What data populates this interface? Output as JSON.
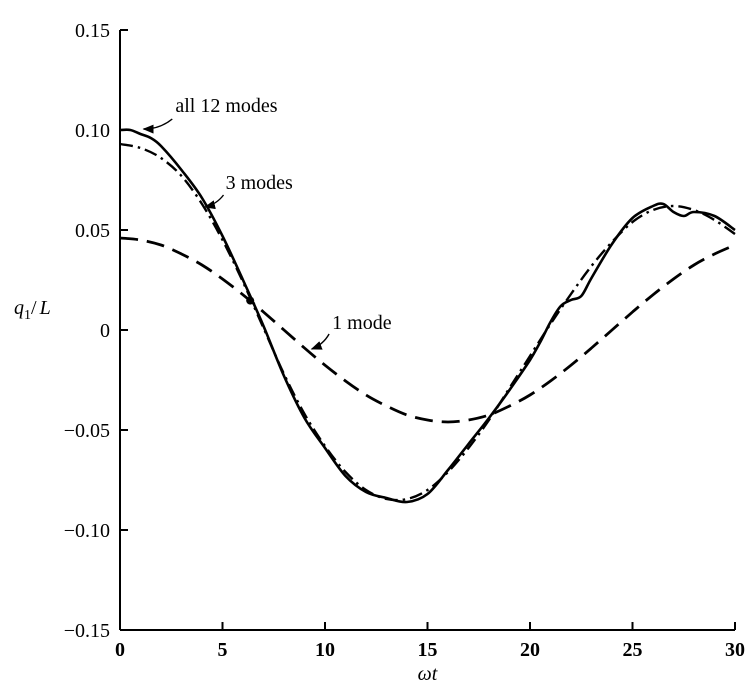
{
  "figure": {
    "background": "#ffffff",
    "ink": "#000000"
  },
  "chart_data": {
    "type": "line",
    "title": "",
    "xlabel": "ωt",
    "ylabel": "q1/L",
    "ylabel_display": {
      "var": "q",
      "sub": "1",
      "divider": "/",
      "denom": "L"
    },
    "xlim": [
      0,
      30
    ],
    "ylim": [
      -0.15,
      0.15
    ],
    "xticks": [
      0,
      5,
      10,
      15,
      20,
      25,
      30
    ],
    "xtick_labels": [
      "0",
      "5",
      "10",
      "15",
      "20",
      "25",
      "30"
    ],
    "yticks": [
      0.15,
      0.1,
      0.05,
      0,
      -0.05,
      -0.1,
      -0.15
    ],
    "ytick_labels": [
      "0.15",
      "0.10",
      "0.05",
      "0",
      "−0.05",
      "−0.10",
      "−0.15"
    ],
    "grid": false,
    "legend_position": "inline-annotations",
    "series": [
      {
        "name": "all 12 modes",
        "style": "solid",
        "stroke_width": 2.6,
        "x": [
          0,
          0.5,
          1,
          1.5,
          2,
          3,
          4,
          5,
          6,
          7,
          8,
          9,
          10,
          11,
          12,
          13,
          14,
          15,
          16,
          17,
          18,
          19,
          20,
          20.5,
          21,
          21.5,
          22,
          22.5,
          23,
          24,
          25,
          26,
          26.5,
          27,
          27.5,
          28,
          29,
          30
        ],
        "y": [
          0.1,
          0.1,
          0.098,
          0.096,
          0.092,
          0.08,
          0.066,
          0.047,
          0.025,
          0.002,
          -0.023,
          -0.044,
          -0.059,
          -0.073,
          -0.081,
          -0.084,
          -0.086,
          -0.082,
          -0.07,
          -0.057,
          -0.044,
          -0.03,
          -0.015,
          -0.006,
          0.004,
          0.012,
          0.015,
          0.017,
          0.026,
          0.043,
          0.056,
          0.062,
          0.063,
          0.059,
          0.057,
          0.059,
          0.057,
          0.05
        ]
      },
      {
        "name": "3 modes",
        "style": "dash-dot",
        "stroke_width": 2.4,
        "x": [
          0,
          1,
          2,
          3,
          4,
          5,
          6,
          7,
          8,
          9,
          10,
          11,
          12,
          13,
          14,
          15,
          16,
          17,
          18,
          19,
          20,
          21,
          22,
          23,
          24,
          25,
          26,
          27,
          28,
          29,
          30
        ],
        "y": [
          0.093,
          0.091,
          0.086,
          0.077,
          0.063,
          0.045,
          0.024,
          0.001,
          -0.022,
          -0.042,
          -0.058,
          -0.071,
          -0.08,
          -0.0845,
          -0.0845,
          -0.08,
          -0.071,
          -0.059,
          -0.045,
          -0.029,
          -0.013,
          0.003,
          0.018,
          0.032,
          0.044,
          0.054,
          0.06,
          0.062,
          0.06,
          0.055,
          0.048
        ]
      },
      {
        "name": "1 mode",
        "style": "long-dash",
        "stroke_width": 2.8,
        "x": [
          0,
          1,
          2,
          3,
          4,
          5,
          6,
          7,
          8,
          9,
          10,
          11,
          12,
          13,
          14,
          15,
          16,
          17,
          18,
          19,
          20,
          21,
          22,
          23,
          24,
          25,
          26,
          27,
          28,
          29,
          30
        ],
        "y": [
          0.046,
          0.045,
          0.0425,
          0.038,
          0.0325,
          0.0255,
          0.0176,
          0.009,
          0,
          -0.009,
          -0.0176,
          -0.0255,
          -0.0325,
          -0.038,
          -0.0425,
          -0.045,
          -0.046,
          -0.045,
          -0.0425,
          -0.038,
          -0.0325,
          -0.0255,
          -0.0176,
          -0.009,
          0,
          0.009,
          0.0176,
          0.0255,
          0.0325,
          0.038,
          0.0425
        ]
      }
    ],
    "annotations": [
      {
        "label": "all 12 modes",
        "text_xy": [
          2.7,
          0.109
        ],
        "arrow_from": [
          2.55,
          0.1055
        ],
        "arrow_to": [
          1.15,
          0.1005
        ]
      },
      {
        "label": "3 modes",
        "text_xy": [
          5.15,
          0.0705
        ],
        "arrow_from": [
          5.05,
          0.0675
        ],
        "arrow_to": [
          4.15,
          0.0615
        ]
      },
      {
        "label": "1 mode",
        "text_xy": [
          10.35,
          0.0005
        ],
        "arrow_from": [
          10.2,
          -0.002
        ],
        "arrow_to": [
          9.35,
          -0.0095
        ]
      }
    ],
    "markers": [
      {
        "xy": [
          6.35,
          0.0147
        ],
        "r": 4
      }
    ]
  }
}
